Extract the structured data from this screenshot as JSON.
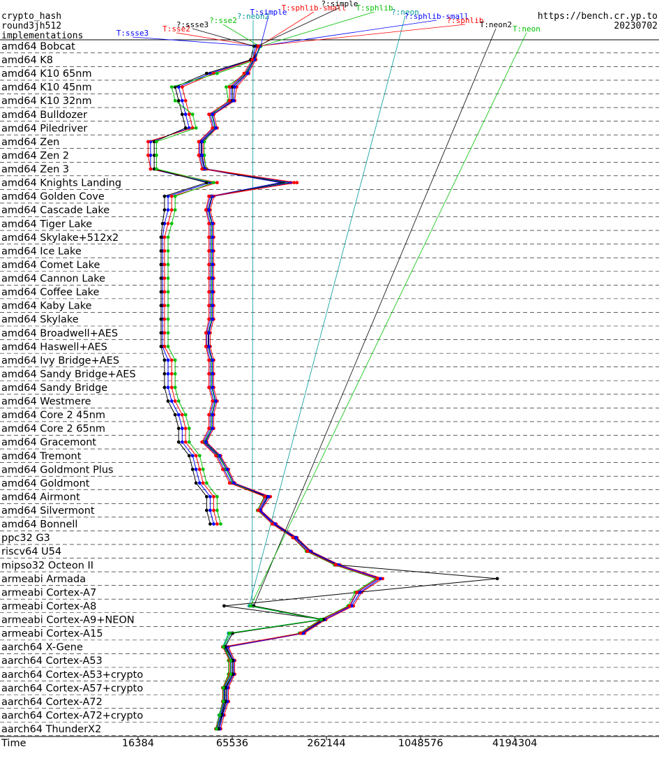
{
  "chart_data": {
    "type": "line",
    "title": "crypto_hash",
    "subtitle": "round3jh512",
    "legend_title": "implementations",
    "source": "https://bench.cr.yp.to",
    "date": "20230702",
    "xlabel": "Time",
    "xscale": "log",
    "xlim": [
      2150,
      35000000
    ],
    "xticks": [
      16384,
      65536,
      262144,
      1048576,
      4194304
    ],
    "categories": [
      "amd64 Bobcat",
      "amd64 K8",
      "amd64 K10 65nm",
      "amd64 K10 45nm",
      "amd64 K10 32nm",
      "amd64 Bulldozer",
      "amd64 Piledriver",
      "amd64 Zen",
      "amd64 Zen 2",
      "amd64 Zen 3",
      "amd64 Knights Landing",
      "amd64 Golden Cove",
      "amd64 Cascade Lake",
      "amd64 Tiger Lake",
      "amd64 Skylake+512x2",
      "amd64 Ice Lake",
      "amd64 Comet Lake",
      "amd64 Cannon Lake",
      "amd64 Coffee Lake",
      "amd64 Kaby Lake",
      "amd64 Skylake",
      "amd64 Broadwell+AES",
      "amd64 Haswell+AES",
      "amd64 Ivy Bridge+AES",
      "amd64 Sandy Bridge+AES",
      "amd64 Sandy Bridge",
      "amd64 Westmere",
      "amd64 Core 2 45nm",
      "amd64 Core 2 65nm",
      "amd64 Gracemont",
      "amd64 Tremont",
      "amd64 Goldmont Plus",
      "amd64 Goldmont",
      "amd64 Airmont",
      "amd64 Silvermont",
      "amd64 Bonnell",
      "ppc32 G3",
      "riscv64 U54",
      "mipso32 Octeon II",
      "armeabi Armada",
      "armeabi Cortex-A7",
      "armeabi Cortex-A8",
      "armeabi Cortex-A9+NEON",
      "armeabi Cortex-A15",
      "aarch64 X-Gene",
      "aarch64 Cortex-A53",
      "aarch64 Cortex-A53+crypto",
      "aarch64 Cortex-A57+crypto",
      "aarch64 Cortex-A72",
      "aarch64 Cortex-A72+crypto",
      "aarch64 ThunderX2"
    ],
    "series": [
      {
        "name": "T:ssse3",
        "color": "#0000ff",
        "values": [
          92600,
          87900,
          47400,
          29800,
          31400,
          33000,
          34800,
          19700,
          19700,
          19700,
          47400,
          25500,
          25500,
          24200,
          23500,
          23500,
          23500,
          23500,
          23500,
          23500,
          23500,
          23500,
          23500,
          25500,
          25500,
          25500,
          26900,
          29800,
          31400,
          31400,
          36600,
          38500,
          40600,
          47400,
          47400,
          49900,
          null,
          null,
          null,
          null,
          null,
          null,
          null,
          null,
          null,
          null,
          null,
          null,
          null,
          null,
          null
        ]
      },
      {
        "name": "T:sse2",
        "color": "#ff0000",
        "values": [
          95000,
          89000,
          49900,
          31400,
          33000,
          34800,
          36600,
          19000,
          19000,
          19700,
          52500,
          26900,
          26900,
          25500,
          24200,
          24200,
          24200,
          24200,
          24200,
          24200,
          24200,
          24200,
          24200,
          26900,
          26900,
          26900,
          28300,
          31400,
          33000,
          33000,
          38500,
          40600,
          42700,
          49900,
          49900,
          52500,
          null,
          null,
          null,
          null,
          null,
          null,
          null,
          null,
          null,
          null,
          null,
          null,
          null,
          null,
          null
        ]
      },
      {
        "name": "?:ssse3",
        "color": "#000000",
        "values": [
          90000,
          86000,
          45000,
          28300,
          29800,
          31400,
          33000,
          20800,
          20800,
          20800,
          45000,
          24200,
          24200,
          23500,
          23000,
          23000,
          23000,
          23000,
          23000,
          23000,
          23000,
          23000,
          23000,
          24200,
          24200,
          24200,
          25500,
          28300,
          29800,
          29800,
          34800,
          36600,
          38500,
          45000,
          45000,
          47400,
          null,
          null,
          null,
          null,
          null,
          null,
          null,
          null,
          null,
          null,
          null,
          null,
          null,
          null,
          null
        ]
      },
      {
        "name": "?:sse2",
        "color": "#00c000",
        "values": [
          97500,
          92600,
          52500,
          26900,
          28300,
          36600,
          38500,
          21500,
          21500,
          21500,
          49900,
          28300,
          28300,
          26900,
          25500,
          25500,
          25500,
          25500,
          25500,
          25500,
          25500,
          25500,
          25500,
          28300,
          28300,
          28300,
          29800,
          33000,
          34800,
          34800,
          40600,
          42700,
          45000,
          52500,
          52500,
          55300,
          null,
          null,
          null,
          null,
          null,
          null,
          null,
          null,
          null,
          null,
          null,
          null,
          null,
          null,
          null
        ]
      },
      {
        "name": "?:neon2",
        "color": "#009999",
        "values": [
          null,
          null,
          null,
          null,
          null,
          null,
          null,
          null,
          null,
          null,
          null,
          null,
          null,
          null,
          null,
          null,
          null,
          null,
          null,
          null,
          null,
          null,
          null,
          null,
          null,
          null,
          null,
          null,
          null,
          null,
          null,
          null,
          null,
          null,
          null,
          null,
          null,
          null,
          null,
          null,
          null,
          87900,
          246000,
          64500,
          58200,
          64500,
          64500,
          58200,
          58200,
          55300,
          52500
        ]
      },
      {
        "name": "T:simple",
        "color": "#0000ff",
        "values": [
          99500,
          89600,
          79300,
          64500,
          64500,
          47400,
          49900,
          40600,
          40600,
          42700,
          133000,
          47400,
          45000,
          47400,
          47400,
          47400,
          47400,
          47400,
          47400,
          47400,
          47400,
          45000,
          45000,
          47400,
          47400,
          47400,
          49900,
          47400,
          47400,
          42700,
          52500,
          58200,
          64500,
          108000,
          97500,
          120000,
          163000,
          200000,
          303000,
          562000,
          413000,
          372000,
          246000,
          181000,
          58200,
          64500,
          64500,
          58200,
          58200,
          55300,
          52500
        ]
      },
      {
        "name": "T:sphlib-small",
        "color": "#ff0000",
        "values": [
          97500,
          92600,
          83500,
          70000,
          68000,
          50000,
          52500,
          42700,
          42700,
          45000,
          163000,
          50000,
          47400,
          49900,
          49900,
          49900,
          49900,
          49900,
          49900,
          49900,
          49900,
          47400,
          47400,
          49900,
          49900,
          49900,
          52500,
          49900,
          49900,
          45000,
          55300,
          62000,
          68000,
          115000,
          100000,
          125000,
          170000,
          210000,
          320000,
          600000,
          440000,
          390000,
          260000,
          190000,
          62000,
          68000,
          68000,
          62000,
          62000,
          58200,
          55300
        ]
      },
      {
        "name": "?:simple",
        "color": "#000000",
        "values": [
          95000,
          90000,
          81000,
          66000,
          66000,
          49000,
          51000,
          41500,
          41500,
          43500,
          140000,
          48500,
          46000,
          48500,
          48500,
          48500,
          48500,
          48500,
          48500,
          48500,
          48500,
          46000,
          46000,
          48500,
          48500,
          48500,
          51000,
          48500,
          48500,
          43500,
          53500,
          60000,
          66000,
          110000,
          99000,
          122000,
          166000,
          205000,
          310000,
          3240000,
          420000,
          58200,
          250000,
          185000,
          60000,
          66000,
          66000,
          60000,
          60000,
          56500,
          53500
        ]
      },
      {
        "name": "T:sphlib",
        "color": "#00c000",
        "values": [
          100000,
          91000,
          80000,
          60000,
          62000,
          48500,
          51000,
          43500,
          43500,
          44500,
          150000,
          49000,
          46500,
          48500,
          48500,
          48500,
          48500,
          48500,
          48500,
          48500,
          48500,
          46500,
          46500,
          48500,
          48500,
          48500,
          51000,
          48500,
          48500,
          44000,
          54000,
          60000,
          66000,
          105000,
          95000,
          118000,
          160000,
          195000,
          295000,
          540000,
          400000,
          360000,
          240000,
          176000,
          60000,
          62000,
          62000,
          57000,
          57000,
          54000,
          51500
        ]
      },
      {
        "name": "?:neon",
        "color": "#009999",
        "values": [
          null,
          null,
          null,
          null,
          null,
          null,
          null,
          null,
          null,
          null,
          null,
          null,
          null,
          null,
          null,
          null,
          null,
          null,
          null,
          null,
          null,
          null,
          null,
          null,
          null,
          null,
          null,
          null,
          null,
          null,
          null,
          null,
          null,
          null,
          null,
          null,
          null,
          null,
          null,
          null,
          null,
          84000,
          240000,
          62000,
          57000,
          63000,
          63000,
          57000,
          57000,
          54000,
          51500
        ]
      },
      {
        "name": "?:sphlib-small",
        "color": "#0000ff",
        "values": [
          98500,
          91000,
          82000,
          68000,
          67000,
          49000,
          51500,
          42000,
          42000,
          44000,
          155000,
          49000,
          46500,
          49000,
          49000,
          49000,
          49000,
          49000,
          49000,
          49000,
          49000,
          46500,
          46500,
          49000,
          49000,
          49000,
          51500,
          49000,
          49000,
          44500,
          54500,
          61000,
          67000,
          112000,
          99000,
          123000,
          168000,
          207000,
          315000,
          580000,
          430000,
          380000,
          255000,
          186000,
          61000,
          67000,
          67000,
          61000,
          61000,
          57000,
          54500
        ]
      },
      {
        "name": "?:sphlib",
        "color": "#ff0000",
        "values": [
          96000,
          88000,
          78000,
          63000,
          63000,
          46500,
          49000,
          40000,
          40000,
          42000,
          170000,
          46500,
          44500,
          46500,
          46500,
          46500,
          46500,
          46500,
          46500,
          46500,
          46500,
          44500,
          44500,
          46500,
          46500,
          46500,
          49000,
          46500,
          46500,
          42000,
          51500,
          57000,
          63000,
          106000,
          96000,
          118000,
          160000,
          198000,
          300000,
          555000,
          410000,
          368000,
          244000,
          179000,
          57000,
          63000,
          63000,
          57000,
          57000,
          54500,
          51500
        ]
      },
      {
        "name": "T:neon2",
        "color": "#000000",
        "values": [
          null,
          null,
          null,
          null,
          null,
          null,
          null,
          null,
          null,
          null,
          null,
          null,
          null,
          null,
          null,
          null,
          null,
          null,
          null,
          null,
          null,
          null,
          null,
          null,
          null,
          null,
          null,
          null,
          null,
          null,
          null,
          null,
          null,
          null,
          null,
          null,
          null,
          null,
          null,
          null,
          null,
          90000,
          250000,
          66000,
          59000,
          66000,
          66000,
          59000,
          59000,
          56000,
          53500
        ]
      },
      {
        "name": "T:neon",
        "color": "#00c000",
        "values": [
          null,
          null,
          null,
          null,
          null,
          null,
          null,
          null,
          null,
          null,
          null,
          null,
          null,
          null,
          null,
          null,
          null,
          null,
          null,
          null,
          null,
          null,
          null,
          null,
          null,
          null,
          null,
          null,
          null,
          null,
          null,
          null,
          null,
          null,
          null,
          null,
          null,
          null,
          null,
          null,
          null,
          86000,
          243000,
          63000,
          57500,
          64000,
          64000,
          57500,
          57500,
          54500,
          52000
        ]
      }
    ]
  }
}
